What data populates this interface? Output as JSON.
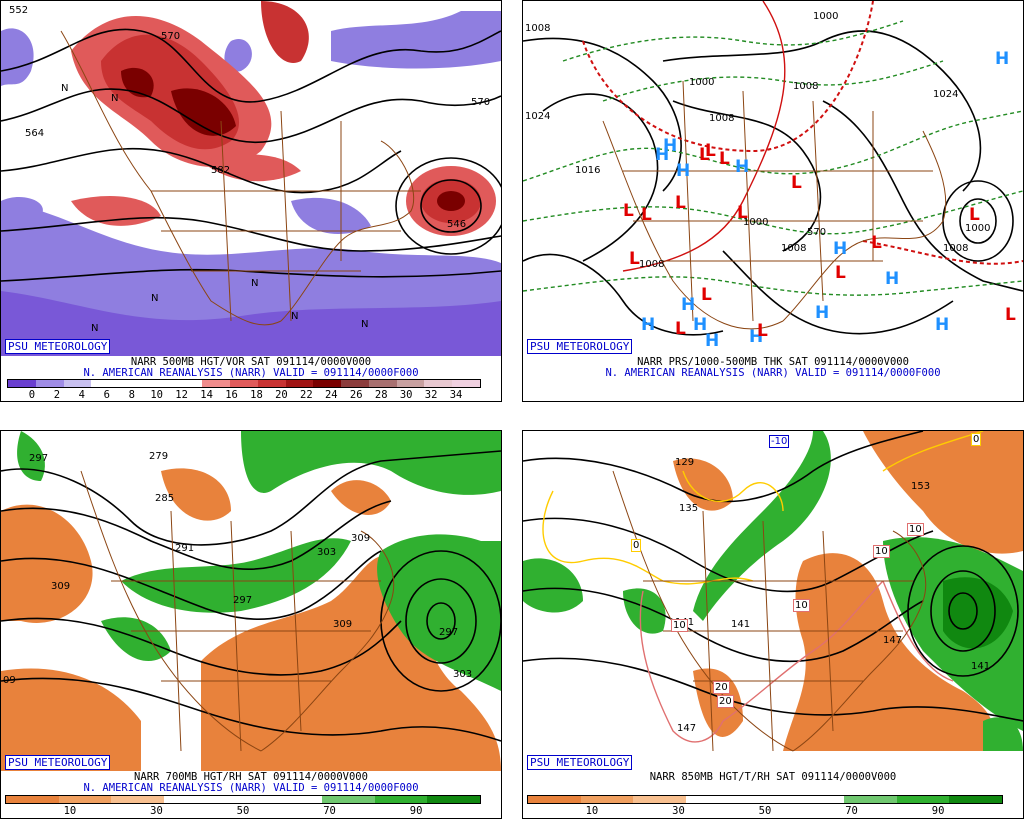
{
  "panels": [
    {
      "id": "p500",
      "badge": "PSU METEOROLOGY",
      "line1": "NARR 500MB HGT/VOR SAT 091114/0000V000",
      "line2": "N. AMERICAN REANALYSIS (NARR) VALID = 091114/0000F000",
      "colorbar_colors": [
        "#6a3fd0",
        "#9f8ce6",
        "#c8c0f0",
        "#ffffff",
        "#ffffff",
        "#ffffff",
        "#ffffff",
        "#f08c8c",
        "#e05a5a",
        "#c83232",
        "#a01414",
        "#7a0000",
        "#8c3c3c",
        "#a87070",
        "#c8a0a0",
        "#e8c8d0",
        "#f0d0e0"
      ],
      "ticks": [
        "0",
        "2",
        "4",
        "6",
        "8",
        "10",
        "12",
        "14",
        "16",
        "18",
        "20",
        "22",
        "24",
        "26",
        "28",
        "30",
        "32",
        "34"
      ],
      "contour_labels": [
        "552",
        "570",
        "564",
        "540",
        "546",
        "576",
        "582",
        "N"
      ]
    },
    {
      "id": "pmslp",
      "badge": "PSU METEOROLOGY",
      "line1": "NARR PRS/1000-500MB THK SAT 091114/0000V000",
      "line2": "N. AMERICAN REANALYSIS (NARR) VALID = 091114/0000F000",
      "isobars": [
        "1008",
        "1000",
        "1024",
        "1016",
        "1008",
        "1000",
        "1008",
        "1000",
        "1024",
        "570"
      ],
      "highs": [
        "H",
        "H",
        "H",
        "H",
        "H",
        "H",
        "H",
        "H",
        "H",
        "H",
        "H",
        "H",
        "H",
        "H"
      ],
      "lows": [
        "L",
        "L",
        "L",
        "L",
        "L",
        "L",
        "L",
        "L",
        "L",
        "L",
        "L",
        "L",
        "L",
        "L",
        "L",
        "L"
      ]
    },
    {
      "id": "p700",
      "badge": "PSU METEOROLOGY",
      "line1": "NARR 700MB HGT/RH SAT 091114/0000V000",
      "line2": "N. AMERICAN REANALYSIS (NARR) VALID = 091114/0000F000",
      "colorbar_colors": [
        "#e8823c",
        "#f0a060",
        "#f8c090",
        "#ffffff",
        "#ffffff",
        "#ffffff",
        "#70c870",
        "#30b030",
        "#108810"
      ],
      "ticks": [
        "10",
        "30",
        "50",
        "70",
        "90"
      ],
      "contour_labels": [
        "297",
        "279",
        "285",
        "291",
        "297",
        "303",
        "309",
        "309",
        "297",
        "303",
        "309",
        "09"
      ]
    },
    {
      "id": "p850",
      "badge": "PSU METEOROLOGY",
      "line1": "NARR 850MB HGT/T/RH SAT 091114/0000V000",
      "line2": "",
      "colorbar_colors": [
        "#e8823c",
        "#f0a060",
        "#f8c090",
        "#ffffff",
        "#ffffff",
        "#ffffff",
        "#70c870",
        "#30b030",
        "#108810"
      ],
      "ticks": [
        "10",
        "30",
        "50",
        "70",
        "90"
      ],
      "contour_labels": [
        "129",
        "135",
        "141",
        "147",
        "153",
        "141",
        "147",
        "141",
        "-10",
        "0",
        "0",
        "10",
        "10",
        "10",
        "10",
        "20",
        "20"
      ]
    }
  ]
}
